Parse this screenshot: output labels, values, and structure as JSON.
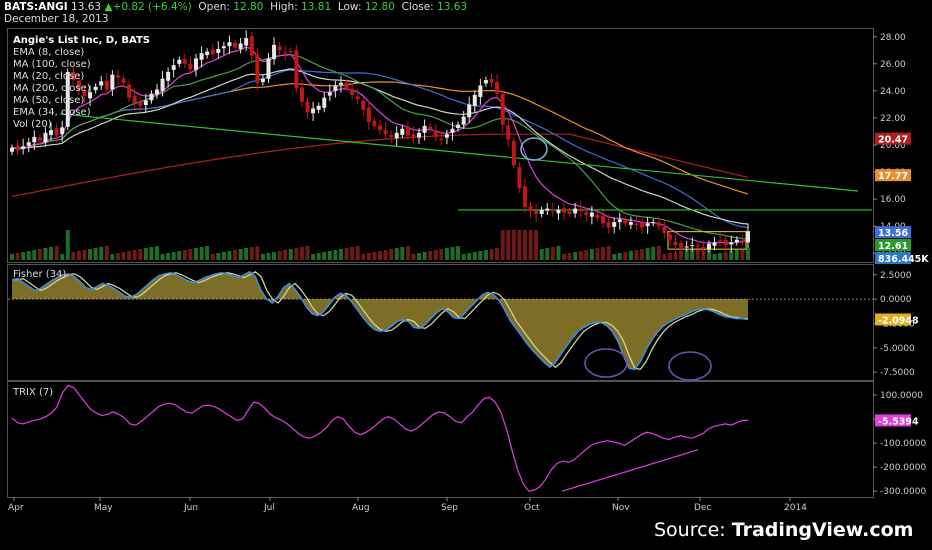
{
  "header": {
    "symbol": "BATS:ANGI",
    "last": "13.63",
    "change": "+0.82 (+6.4%)",
    "open_label": "Open:",
    "open": "12.80",
    "high_label": "High:",
    "high": "13.81",
    "low_label": "Low:",
    "low": "12.80",
    "close_label": "Close:",
    "close": "13.63",
    "date": "December 18, 2013"
  },
  "legend": {
    "title": "Angie's List Inc, D, BATS",
    "items": [
      "EMA (8, close)",
      "MA (100, close)",
      "MA (20, close)",
      "MA (200, close)",
      "MA (50, close)",
      "EMA (34, close)",
      "Vol (20)"
    ]
  },
  "fisher_label": "Fisher (34)",
  "trix_label": "TRIX (7)",
  "source": {
    "prefix": "Source: ",
    "brand": "TradingView.com"
  },
  "colors": {
    "up": "#e8e8e8",
    "down": "#c01818",
    "ema8": "#e040e0",
    "ma20": "#4aa04a",
    "ma50": "#3d6fd6",
    "ema34": "#c8d8c8",
    "ma100": "#e89030",
    "ma200": "#b02020",
    "trend": "#30c030",
    "fisher_fill": "#8a7a2a",
    "fisher_line1": "#3d8ee8",
    "fisher_line2": "#d8d090",
    "trix": "#e040e0",
    "ellipse": "#6d4fb0",
    "circle": "#7ab8d8"
  },
  "chart_data": [
    {
      "type": "candlestick",
      "title": "Angie's List Inc, D, BATS",
      "x_ticks": [
        "Apr",
        "May",
        "Jun",
        "Jul",
        "Aug",
        "Sep",
        "Oct",
        "Nov",
        "Dec",
        "2014"
      ],
      "y_ticks": [
        "28.00",
        "26.00",
        "24.00",
        "22.00",
        "20.00",
        "18.00",
        "16.00",
        "14.00",
        "12.00"
      ],
      "ylim": [
        11.5,
        28.5
      ],
      "close_series": [
        19.8,
        19.6,
        19.9,
        20.2,
        20.6,
        20.3,
        20.9,
        21.1,
        20.7,
        21.3,
        25.4,
        24.8,
        24.1,
        23.6,
        23.9,
        24.3,
        24.7,
        24.1,
        25.2,
        25.0,
        24.6,
        23.5,
        23.1,
        22.9,
        23.3,
        23.8,
        24.1,
        24.9,
        25.4,
        25.9,
        26.3,
        26.0,
        25.6,
        26.4,
        26.8,
        26.9,
        26.7,
        27.1,
        27.3,
        27.6,
        27.2,
        27.5,
        27.9,
        26.6,
        24.6,
        24.9,
        26.4,
        27.4,
        27.0,
        26.8,
        26.9,
        24.2,
        23.2,
        22.4,
        22.7,
        22.9,
        23.5,
        23.9,
        24.4,
        24.6,
        24.2,
        23.7,
        23.4,
        22.6,
        21.7,
        21.4,
        21.1,
        20.8,
        20.6,
        20.9,
        21.2,
        20.7,
        20.5,
        20.9,
        21.4,
        21.2,
        20.6,
        20.4,
        20.8,
        21.2,
        21.5,
        22.1,
        23.0,
        23.7,
        24.4,
        24.8,
        24.6,
        23.8,
        21.5,
        20.4,
        18.5,
        16.8,
        15.4,
        15.1,
        14.9,
        15.2,
        15.3,
        15.1,
        15.2,
        15.0,
        14.9,
        15.3,
        15.1,
        14.8,
        15.0,
        14.6,
        14.2,
        13.9,
        14.3,
        14.5,
        14.2,
        14.3,
        14.1,
        13.9,
        14.2,
        14.3,
        14.0,
        13.5,
        13.0,
        12.6,
        12.4,
        12.5,
        12.6,
        12.5,
        12.4,
        12.7,
        12.8,
        12.9,
        12.6,
        12.8,
        13.0,
        12.9,
        13.63
      ],
      "volume_label": "836.445K",
      "price_tags": [
        {
          "label": "20.47",
          "value": 20.47,
          "color": "#b02020"
        },
        {
          "label": "17.77",
          "value": 17.77,
          "color": "#e89030"
        },
        {
          "label": "13.56",
          "value": 13.56,
          "color": "#3d6fd6"
        },
        {
          "label": "12.61",
          "value": 12.61,
          "color": "#2a9a2a"
        }
      ]
    },
    {
      "type": "area",
      "title": "Fisher (34)",
      "y_ticks": [
        "2.5000",
        "0.0000",
        "-2.5000",
        "-5.0000",
        "-7.5000"
      ],
      "ylim": [
        -8.2,
        3.4
      ],
      "values": [
        2.0,
        2.1,
        1.7,
        1.3,
        0.9,
        1.1,
        1.5,
        1.9,
        2.2,
        2.5,
        2.6,
        2.3,
        1.8,
        1.2,
        1.0,
        1.3,
        1.6,
        1.4,
        1.1,
        0.7,
        0.3,
        0.2,
        0.5,
        1.0,
        1.5,
        2.0,
        2.4,
        2.6,
        2.7,
        2.5,
        2.2,
        1.9,
        1.7,
        1.9,
        2.2,
        2.4,
        2.6,
        2.7,
        2.6,
        2.4,
        2.2,
        2.5,
        2.8,
        2.3,
        0.9,
        0.0,
        -0.4,
        0.3,
        1.2,
        1.6,
        1.0,
        0.2,
        -0.8,
        -1.5,
        -1.7,
        -1.3,
        -0.6,
        0.2,
        0.6,
        0.4,
        -0.3,
        -1.1,
        -1.9,
        -2.6,
        -3.1,
        -3.3,
        -3.2,
        -2.8,
        -2.3,
        -2.1,
        -2.3,
        -2.9,
        -3.0,
        -2.6,
        -2.0,
        -1.4,
        -1.0,
        -1.3,
        -1.9,
        -2.0,
        -1.4,
        -0.8,
        -0.2,
        0.4,
        0.7,
        0.5,
        -0.1,
        -1.1,
        -2.2,
        -3.0,
        -3.8,
        -4.6,
        -5.3,
        -5.9,
        -6.5,
        -7.0,
        -6.5,
        -5.6,
        -4.8,
        -4.0,
        -3.3,
        -2.9,
        -2.6,
        -2.4,
        -2.4,
        -2.7,
        -3.3,
        -4.3,
        -5.8,
        -7.1,
        -7.2,
        -6.4,
        -5.2,
        -4.2,
        -3.4,
        -2.8,
        -2.4,
        -2.1,
        -1.8,
        -1.6,
        -1.3,
        -1.1,
        -1.0,
        -1.1,
        -1.3,
        -1.6,
        -1.8,
        -1.9,
        -2.0,
        -2.0,
        -2.09
      ],
      "last_label": "-2.0948"
    },
    {
      "type": "line",
      "title": "TRIX (7)",
      "y_ticks": [
        "100.0000",
        "0.0000",
        "-100.0000",
        "-200.0000",
        "-300.0000"
      ],
      "ylim": [
        -320,
        150
      ],
      "values": [
        5,
        -15,
        -20,
        -12,
        -5,
        0,
        10,
        25,
        50,
        110,
        140,
        130,
        100,
        70,
        40,
        25,
        15,
        20,
        30,
        20,
        5,
        -20,
        -25,
        -10,
        10,
        30,
        50,
        62,
        66,
        60,
        45,
        30,
        25,
        40,
        55,
        58,
        52,
        40,
        25,
        10,
        -5,
        0,
        35,
        70,
        65,
        45,
        20,
        5,
        -5,
        -20,
        -40,
        -60,
        -75,
        -80,
        -70,
        -55,
        -35,
        -5,
        10,
        0,
        -30,
        -55,
        -65,
        -55,
        -40,
        -20,
        0,
        10,
        0,
        -20,
        -40,
        -50,
        -40,
        -20,
        0,
        20,
        30,
        25,
        10,
        -10,
        -15,
        10,
        30,
        60,
        85,
        90,
        70,
        30,
        -40,
        -130,
        -210,
        -270,
        -300,
        -295,
        -280,
        -250,
        -210,
        -185,
        -175,
        -180,
        -170,
        -150,
        -130,
        -110,
        -100,
        -95,
        -90,
        -95,
        -100,
        -110,
        -95,
        -80,
        -65,
        -55,
        -60,
        -70,
        -80,
        -85,
        -75,
        -70,
        -75,
        -80,
        -70,
        -60,
        -40,
        -30,
        -25,
        -20,
        -25,
        -15,
        -5,
        -5.54
      ],
      "last_label": "-5.5394"
    }
  ]
}
